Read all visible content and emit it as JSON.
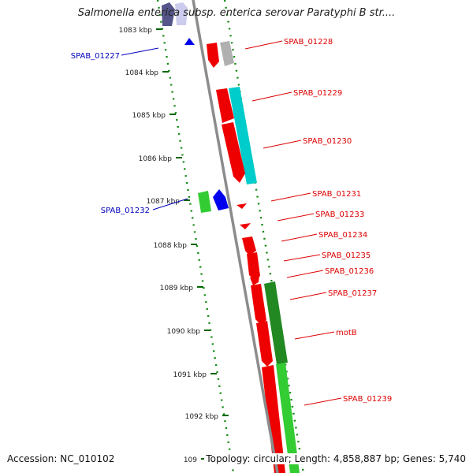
{
  "title": "Salmonella enterica subsp. enterica serovar Paratyphi B str....",
  "footer": {
    "accession": "Accession: NC_010102",
    "topology": "Topology: circular; Length: 4,858,887 bp; Genes: 5,740"
  },
  "ticks": [
    {
      "label": "1083 kbp"
    },
    {
      "label": "1084 kbp"
    },
    {
      "label": "1085 kbp"
    },
    {
      "label": "1086 kbp"
    },
    {
      "label": "1087 kbp"
    },
    {
      "label": "1088 kbp"
    },
    {
      "label": "1089 kbp"
    },
    {
      "label": "1090 kbp"
    },
    {
      "label": "1091 kbp"
    },
    {
      "label": "1092 kbp"
    },
    {
      "label": "109"
    }
  ],
  "gene_labels": [
    {
      "text": "SPAB_01227",
      "color": "#0000bb"
    },
    {
      "text": "SPAB_01228",
      "color": "#dd0000"
    },
    {
      "text": "SPAB_01229",
      "color": "#dd0000"
    },
    {
      "text": "SPAB_01230",
      "color": "#dd0000"
    },
    {
      "text": "SPAB_01231",
      "color": "#dd0000"
    },
    {
      "text": "SPAB_01232",
      "color": "#0000bb"
    },
    {
      "text": "SPAB_01233",
      "color": "#dd0000"
    },
    {
      "text": "SPAB_01234",
      "color": "#dd0000"
    },
    {
      "text": "SPAB_01235",
      "color": "#dd0000"
    },
    {
      "text": "SPAB_01236",
      "color": "#dd0000"
    },
    {
      "text": "SPAB_01237",
      "color": "#dd0000"
    },
    {
      "text": "motB",
      "color": "#dd0000"
    },
    {
      "text": "SPAB_01239",
      "color": "#dd0000"
    }
  ],
  "colors": {
    "backbone": "#8c8c8c",
    "tick_dots": "#118811",
    "tick_marks": "#006600",
    "cds_forward": "#ee0000",
    "cds_reverse": "#0000ee"
  }
}
